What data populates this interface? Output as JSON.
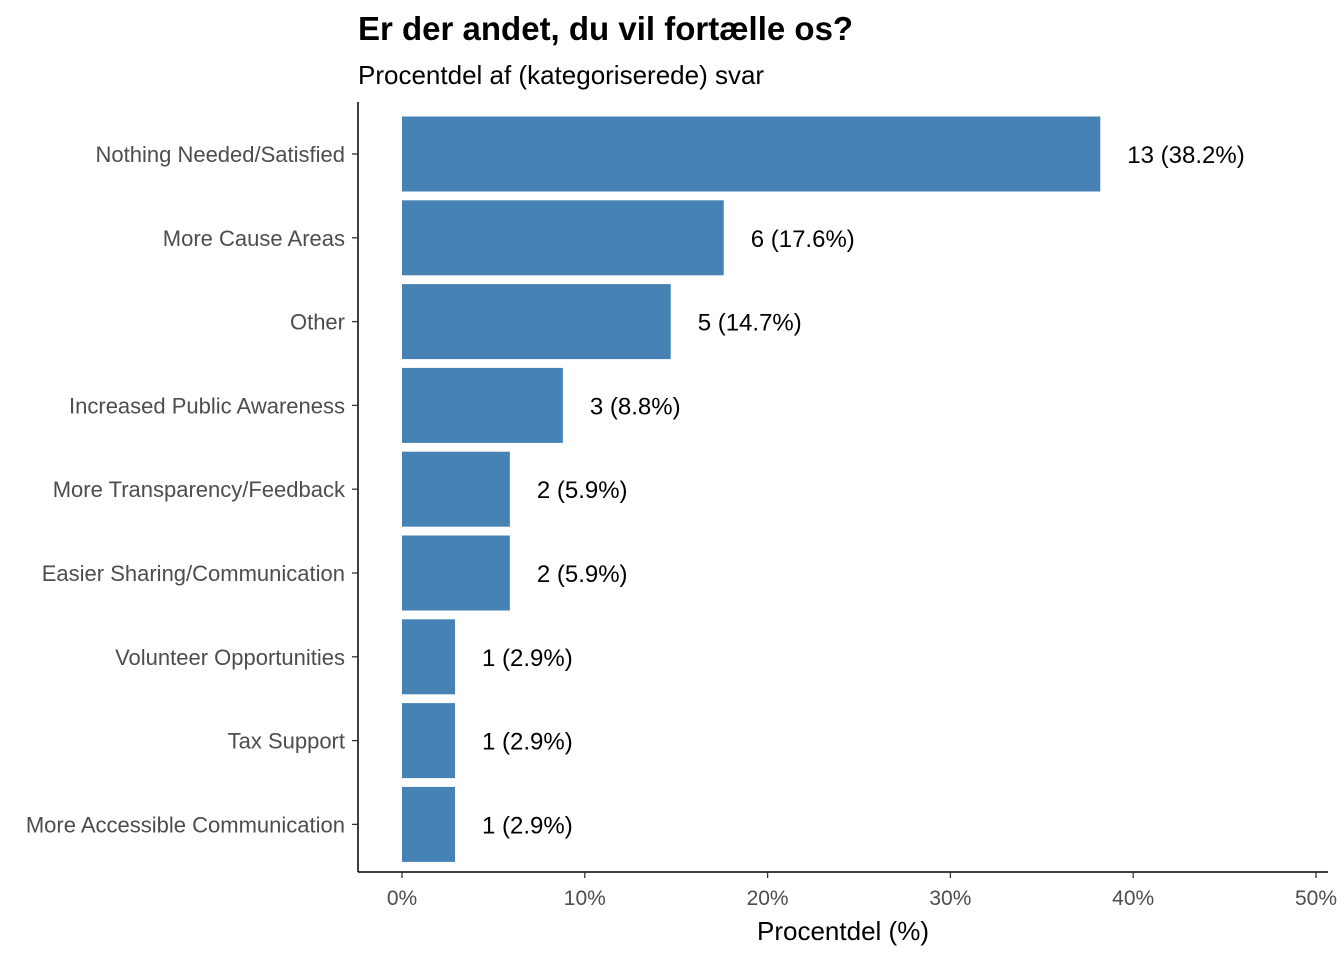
{
  "chart_data": {
    "type": "bar",
    "orientation": "horizontal",
    "title": "Er der andet, du vil fortælle os?",
    "subtitle": "Procentdel af (kategoriserede) svar",
    "xlabel": "Procentdel (%)",
    "ylabel": "",
    "xlim": [
      0,
      50
    ],
    "x_ticks": [
      0,
      10,
      20,
      30,
      40,
      50
    ],
    "x_tick_labels": [
      "0%",
      "10%",
      "20%",
      "30%",
      "40%",
      "50%"
    ],
    "grid": false,
    "legend": "none",
    "bar_color": "#4682b4",
    "categories": [
      "Nothing Needed/Satisfied",
      "More Cause Areas",
      "Other",
      "Increased Public Awareness",
      "More Transparency/Feedback",
      "Easier Sharing/Communication",
      "Volunteer Opportunities",
      "Tax Support",
      "More Accessible Communication"
    ],
    "values": [
      38.2,
      17.6,
      14.7,
      8.8,
      5.9,
      5.9,
      2.9,
      2.9,
      2.9
    ],
    "counts": [
      13,
      6,
      5,
      3,
      2,
      2,
      1,
      1,
      1
    ],
    "data_labels": [
      "13 (38.2%)",
      "6 (17.6%)",
      "5 (14.7%)",
      "3 (8.8%)",
      "2 (5.9%)",
      "2 (5.9%)",
      "1 (2.9%)",
      "1 (2.9%)",
      "1 (2.9%)"
    ]
  }
}
